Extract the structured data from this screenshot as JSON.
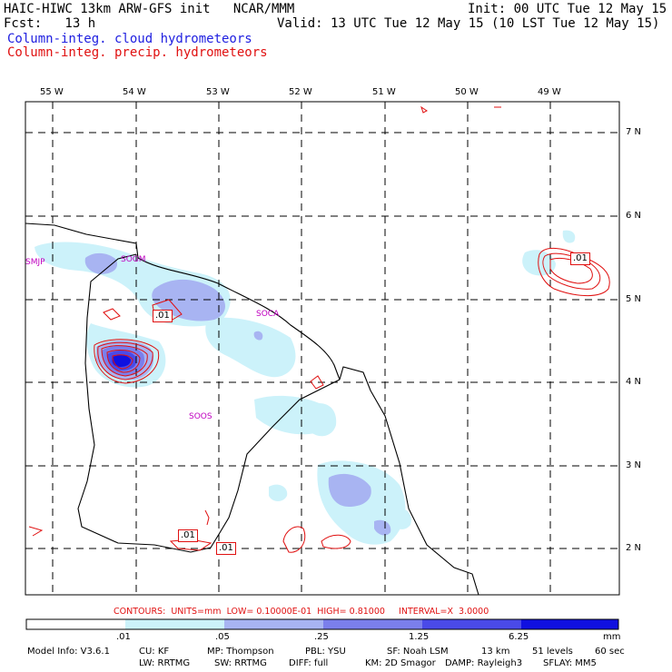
{
  "header": {
    "line1_left": "HAIC-HIWC 13km ARW-GFS init   NCAR/MMM",
    "line1_right": "Init: 00 UTC Tue 12 May 15",
    "line2_left": "Fcst:   13 h",
    "line2_right": "Valid: 13 UTC Tue 12 May 15 (10 LST Tue 12 May 15)",
    "legend_cloud": "Column-integ. cloud hydrometeors",
    "legend_precip": "Column-integ. precip. hydrometeors"
  },
  "colors": {
    "cloud_label": "#2020e0",
    "precip_label": "#e01010",
    "shade_01": "#ccf2fa",
    "shade_05": "#a8b4f2",
    "shade_25": "#7b7fec",
    "shade_125": "#4a4ae8",
    "shade_625": "#1010e0",
    "precip_contour": "#e01010",
    "station": "#c000c0"
  },
  "map": {
    "lon_labels": [
      "55 W",
      "54 W",
      "53 W",
      "52 W",
      "51 W",
      "50 W",
      "49 W"
    ],
    "lat_labels": [
      "7 N",
      "6 N",
      "5 N",
      "4 N",
      "3 N",
      "2 N"
    ],
    "stations": [
      "SMJP",
      "SOGM",
      "SOCA",
      "SOOS"
    ],
    "contour_labels": [
      ".01",
      ".01",
      ".01",
      ".01"
    ]
  },
  "contours_info": {
    "prefix": "CONTOURS:",
    "units": "UNITS=mm",
    "low": "LOW= 0.10000E-01",
    "high": "HIGH= 0.81000",
    "interval": "INTERVAL=X  3.0000"
  },
  "colorbar": {
    "labels": [
      ".01",
      ".05",
      ".25",
      "1.25",
      "6.25"
    ],
    "unit": "mm"
  },
  "footer": {
    "line1": [
      "Model Info: V3.6.1",
      "CU: KF",
      "MP: Thompson",
      "PBL: YSU",
      "SF: Noah LSM",
      "13 km",
      "51 levels",
      "60 sec"
    ],
    "line2": [
      "LW: RRTMG",
      "SW: RRTMG",
      "DIFF: full",
      "KM: 2D Smagor",
      "DAMP: Rayleigh3",
      "SFLAY: MM5"
    ]
  }
}
